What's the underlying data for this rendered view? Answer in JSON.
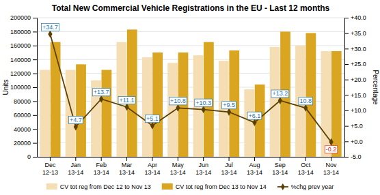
{
  "chart_data": {
    "type": "bar",
    "title": "Total New Commercial Vehicle Registrations in the EU - Last 12 months",
    "categories": [
      "Dec\n12-13",
      "Jan\n13-14",
      "Feb\n13-14",
      "Mar\n13-14",
      "Apr\n13-14",
      "May\n13-14",
      "Jun\n13-14",
      "Jul\n13-14",
      "Aug\n13-14",
      "Sep\n13-14",
      "Oct\n13-14",
      "Nov\n13-14"
    ],
    "series": [
      {
        "name": "CV tot reg from Dec 12 to Nov 13",
        "color": "#F5DEB3",
        "values": [
          125000,
          125000,
          110000,
          165000,
          143000,
          135000,
          146000,
          138000,
          97000,
          158000,
          160000,
          152000
        ]
      },
      {
        "name": "CV tot reg from Dec 13 to Nov 14",
        "color": "#DAA520",
        "values": [
          165000,
          133000,
          125000,
          183000,
          150000,
          150000,
          165000,
          153000,
          104000,
          180000,
          178000,
          152000
        ]
      },
      {
        "name": "%chg prev year",
        "type": "line",
        "axis": "y2",
        "color": "#5C4000",
        "marker": "diamond",
        "data_labels": true,
        "values": [
          34.7,
          4.7,
          13.7,
          11.1,
          5.1,
          10.8,
          10.3,
          9.5,
          6.1,
          13.2,
          10.8,
          -0.2
        ],
        "value_labels": [
          "+34.7",
          "+4.7",
          "+13.7",
          "+11.1",
          "+5.1",
          "+10.8",
          "+10.3",
          "+9.5",
          "+6.1",
          "+13.2",
          "10.8",
          "-0.2"
        ]
      }
    ],
    "ylabel": "Units",
    "y2label": "Percentage",
    "ylim": [
      0,
      200000
    ],
    "yticks": [
      0,
      20000,
      40000,
      60000,
      80000,
      100000,
      120000,
      140000,
      160000,
      180000,
      200000
    ],
    "y2lim": [
      -5.0,
      40.0
    ],
    "y2ticks": [
      {
        "value": -5.0,
        "label": "-5.0"
      },
      {
        "value": 0.0,
        "label": "+0.0"
      },
      {
        "value": 5.0,
        "label": "+5.0"
      },
      {
        "value": 10.0,
        "label": "+10.0"
      },
      {
        "value": 15.0,
        "label": "+15.0"
      },
      {
        "value": 20.0,
        "label": "+20.0"
      },
      {
        "value": 25.0,
        "label": "+25.0"
      },
      {
        "value": 30.0,
        "label": "+30.0"
      },
      {
        "value": 35.0,
        "label": "+35.0"
      },
      {
        "value": 40.0,
        "label": "+40.0"
      }
    ],
    "grid": true,
    "legend": "bottom"
  }
}
